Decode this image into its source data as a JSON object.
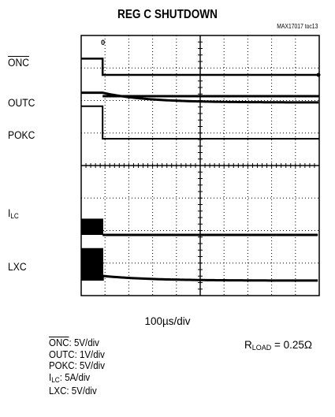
{
  "chart": {
    "title": "REG C SHUTDOWN",
    "part_number": "MAX17017 toc13",
    "timebase": "100µs/div",
    "traces": [
      {
        "label": "ONC",
        "overline": true
      },
      {
        "label": "OUTC",
        "overline": false
      },
      {
        "label": "POKC",
        "overline": false
      },
      {
        "label_main": "I",
        "label_sub": "LC",
        "overline": false
      },
      {
        "label": "LXC",
        "overline": false
      }
    ],
    "scales": {
      "onc": "ONC",
      "onc_value": ": 5V/div",
      "outc": "OUTC: 1V/div",
      "pokc": "POKC: 5V/div",
      "ilc_main": "I",
      "ilc_sub": "LC",
      "ilc_value": ": 5A/div",
      "lxc": "LXC: 5V/div"
    },
    "rload": {
      "main": "R",
      "sub": "LOAD",
      "value": " = 0.25Ω"
    }
  },
  "chart_data": {
    "type": "line",
    "title": "REG C SHUTDOWN",
    "xlabel": "100µs/div",
    "x_divisions": 10,
    "y_divisions": 8,
    "grid": true,
    "event_division": 0.9,
    "series": [
      {
        "name": "ONC",
        "scale": "5V/div",
        "before_divisions": 0.5,
        "after_divisions": 0
      },
      {
        "name": "OUTC",
        "scale": "1V/div",
        "before_divisions": 0.3,
        "after_divisions": 0,
        "decay": "exponential"
      },
      {
        "name": "POKC",
        "scale": "5V/div",
        "before_divisions": 1.0,
        "after_divisions": 0
      },
      {
        "name": "ILC",
        "scale": "5A/div",
        "before_divisions": 0.5,
        "after_divisions": 0
      },
      {
        "name": "LXC",
        "scale": "5V/div",
        "before_divisions": 1.0,
        "after_divisions": 0
      }
    ],
    "annotation": "RLOAD = 0.25Ω"
  }
}
